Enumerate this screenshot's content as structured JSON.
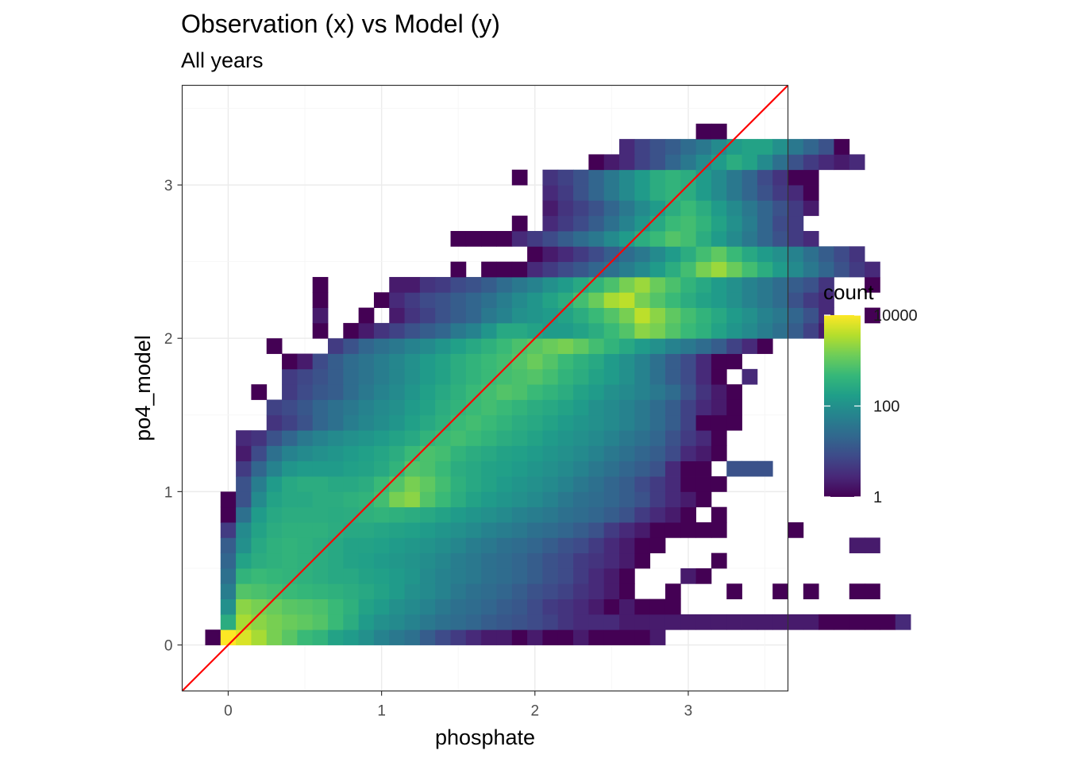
{
  "chart_data": {
    "type": "heatmap",
    "title": "Observation (x) vs Model (y)",
    "subtitle": "All years",
    "xlabel": "phosphate",
    "ylabel": "po4_model",
    "xlim": [
      -0.3,
      3.65
    ],
    "ylim": [
      -0.3,
      3.65
    ],
    "x_ticks": [
      0,
      1,
      2,
      3
    ],
    "y_ticks": [
      0,
      1,
      2,
      3
    ],
    "bin_width": 0.1,
    "y_origin": 0.0,
    "fill_scale": "log10",
    "legend": {
      "title": "count",
      "position": "right",
      "breaks": [
        1,
        100,
        10000
      ],
      "labels": [
        "1",
        "100",
        "10000"
      ],
      "range": [
        1,
        10000
      ]
    },
    "colors": {
      "viridis": [
        "#440154",
        "#482878",
        "#3E4A89",
        "#31688E",
        "#26828E",
        "#1F9E89",
        "#35B779",
        "#6DCD59",
        "#B4DE2C",
        "#FDE725"
      ],
      "identity_line": "#FF0000",
      "grid_major": "#EBEBEB",
      "grid_minor": "#F5F5F5",
      "panel_border": "#333333"
    },
    "identity_line": {
      "slope": 1,
      "intercept": 0
    },
    "rows": [
      {
        "y": 0.0,
        "x0": -0.15,
        "counts": [
          1,
          10000,
          6000,
          3000,
          1500,
          900,
          500,
          400,
          200,
          150,
          100,
          60,
          40,
          30,
          15,
          8,
          5,
          3,
          2,
          2,
          1,
          2,
          1,
          1,
          2,
          1,
          1,
          1,
          1,
          2
        ]
      },
      {
        "y": 0.1,
        "x0": -0.05,
        "counts": [
          300,
          3000,
          2000,
          1500,
          1200,
          1000,
          800,
          500,
          300,
          150,
          100,
          80,
          60,
          40,
          30,
          25,
          20,
          15,
          12,
          10,
          8,
          6,
          4,
          3,
          3,
          3,
          2,
          2,
          2,
          2,
          2,
          2,
          2,
          2,
          2,
          2,
          2,
          2,
          2,
          1,
          1,
          1,
          1,
          1,
          3
        ]
      },
      {
        "y": 0.2,
        "x0": -0.05,
        "counts": [
          100,
          2000,
          1500,
          1200,
          900,
          800,
          700,
          500,
          350,
          200,
          150,
          100,
          80,
          60,
          40,
          30,
          25,
          20,
          15,
          12,
          8,
          5,
          4,
          3,
          2,
          1,
          2,
          1,
          1,
          1
        ]
      },
      {
        "y": 0.3,
        "x0": -0.05,
        "counts": [
          50,
          800,
          700,
          600,
          500,
          450,
          400,
          350,
          300,
          250,
          200,
          150,
          100,
          80,
          60,
          40,
          30,
          25,
          20,
          15,
          10,
          8,
          6,
          4,
          3,
          2,
          1,
          0,
          0,
          1,
          0,
          0,
          0,
          1,
          0,
          0,
          1,
          0,
          1,
          0,
          0,
          1,
          1
        ]
      },
      {
        "y": 0.4,
        "x0": -0.05,
        "counts": [
          30,
          400,
          500,
          450,
          400,
          350,
          300,
          250,
          250,
          200,
          180,
          150,
          120,
          80,
          60,
          50,
          40,
          30,
          25,
          20,
          15,
          10,
          8,
          5,
          3,
          2,
          1,
          0,
          0,
          0,
          2,
          1
        ]
      },
      {
        "y": 0.5,
        "x0": -0.05,
        "counts": [
          20,
          200,
          300,
          350,
          400,
          350,
          300,
          250,
          200,
          180,
          150,
          130,
          110,
          90,
          70,
          50,
          40,
          30,
          25,
          20,
          15,
          10,
          8,
          5,
          4,
          3,
          2,
          1,
          0,
          0,
          0,
          0,
          1
        ]
      },
      {
        "y": 0.6,
        "x0": -0.05,
        "counts": [
          15,
          100,
          250,
          350,
          400,
          350,
          300,
          250,
          200,
          200,
          180,
          150,
          130,
          110,
          90,
          70,
          50,
          40,
          30,
          25,
          20,
          15,
          10,
          8,
          5,
          3,
          2,
          1,
          1,
          0,
          0,
          0,
          0,
          0,
          0,
          0,
          0,
          0,
          0,
          0,
          0,
          2,
          2
        ]
      },
      {
        "y": 0.7,
        "x0": -0.05,
        "counts": [
          5,
          80,
          200,
          300,
          350,
          350,
          350,
          300,
          250,
          250,
          220,
          200,
          180,
          150,
          120,
          100,
          80,
          60,
          50,
          40,
          30,
          25,
          20,
          15,
          10,
          5,
          3,
          2,
          1,
          1,
          1,
          1,
          1,
          0,
          0,
          0,
          0,
          1
        ]
      },
      {
        "y": 0.8,
        "x0": -0.05,
        "counts": [
          1,
          30,
          150,
          250,
          300,
          300,
          300,
          280,
          300,
          350,
          400,
          350,
          300,
          250,
          200,
          150,
          120,
          100,
          80,
          60,
          50,
          40,
          30,
          25,
          20,
          15,
          10,
          5,
          3,
          2,
          1,
          0,
          1
        ]
      },
      {
        "y": 0.9,
        "x0": -0.05,
        "counts": [
          1,
          10,
          80,
          200,
          250,
          250,
          300,
          300,
          350,
          400,
          600,
          1500,
          2000,
          800,
          500,
          300,
          200,
          150,
          120,
          100,
          80,
          60,
          40,
          30,
          25,
          20,
          15,
          10,
          5,
          3,
          2,
          1
        ]
      },
      {
        "y": 1.0,
        "x0": 0.05,
        "counts": [
          10,
          50,
          150,
          250,
          300,
          300,
          250,
          250,
          300,
          500,
          800,
          1500,
          1000,
          600,
          350,
          250,
          200,
          150,
          120,
          100,
          80,
          60,
          40,
          30,
          20,
          15,
          8,
          5,
          3,
          1,
          1,
          1
        ]
      },
      {
        "y": 1.1,
        "x0": 0.05,
        "counts": [
          5,
          20,
          60,
          120,
          150,
          150,
          150,
          180,
          200,
          250,
          400,
          800,
          700,
          500,
          300,
          250,
          200,
          180,
          150,
          120,
          100,
          80,
          60,
          40,
          30,
          20,
          15,
          10,
          3,
          1,
          1,
          0,
          10,
          10,
          10
        ]
      },
      {
        "y": 1.2,
        "x0": 0.05,
        "counts": [
          2,
          8,
          30,
          60,
          80,
          100,
          120,
          150,
          180,
          220,
          300,
          500,
          700,
          600,
          400,
          300,
          250,
          200,
          180,
          150,
          120,
          100,
          80,
          60,
          40,
          30,
          20,
          15,
          8,
          3,
          2,
          1
        ]
      },
      {
        "y": 1.3,
        "x0": 0.05,
        "counts": [
          3,
          4,
          10,
          20,
          40,
          60,
          80,
          100,
          120,
          150,
          200,
          250,
          400,
          500,
          600,
          500,
          400,
          300,
          250,
          200,
          150,
          120,
          100,
          80,
          60,
          40,
          30,
          20,
          10,
          5,
          3,
          1
        ]
      },
      {
        "y": 1.4,
        "x0": 0.25,
        "counts": [
          4,
          6,
          10,
          20,
          30,
          50,
          70,
          90,
          120,
          180,
          250,
          350,
          500,
          600,
          500,
          400,
          300,
          250,
          200,
          150,
          120,
          100,
          80,
          60,
          40,
          25,
          15,
          6,
          1,
          1,
          1
        ]
      },
      {
        "y": 1.5,
        "x0": 0.25,
        "counts": [
          6,
          8,
          12,
          20,
          30,
          40,
          60,
          80,
          100,
          150,
          200,
          300,
          400,
          500,
          600,
          500,
          400,
          300,
          250,
          200,
          150,
          100,
          80,
          60,
          40,
          25,
          15,
          6,
          3,
          2,
          1
        ]
      },
      {
        "y": 1.6,
        "x0": 0.15,
        "counts": [
          1,
          0,
          5,
          8,
          12,
          15,
          25,
          40,
          60,
          80,
          120,
          180,
          250,
          350,
          500,
          600,
          800,
          700,
          500,
          400,
          300,
          200,
          150,
          100,
          80,
          60,
          40,
          25,
          10,
          4,
          2,
          1
        ]
      },
      {
        "y": 1.7,
        "x0": 0.35,
        "counts": [
          5,
          7,
          10,
          15,
          25,
          35,
          50,
          70,
          100,
          150,
          200,
          300,
          400,
          500,
          600,
          700,
          800,
          600,
          400,
          300,
          200,
          150,
          100,
          60,
          30,
          15,
          8,
          3,
          1,
          0,
          3
        ]
      },
      {
        "y": 1.8,
        "x0": 0.35,
        "counts": [
          1,
          2,
          8,
          15,
          25,
          35,
          50,
          70,
          100,
          150,
          200,
          300,
          400,
          500,
          600,
          800,
          1200,
          800,
          500,
          350,
          250,
          150,
          100,
          60,
          30,
          15,
          8,
          3,
          1,
          1
        ]
      },
      {
        "y": 1.9,
        "x0": 0.25,
        "counts": [
          1,
          0,
          0,
          0,
          5,
          10,
          20,
          30,
          40,
          60,
          80,
          120,
          180,
          250,
          350,
          500,
          700,
          900,
          1200,
          1500,
          1000,
          600,
          400,
          250,
          150,
          100,
          60,
          40,
          25,
          15,
          6,
          3,
          1
        ]
      },
      {
        "y": 2.0,
        "x0": 0.55,
        "counts": [
          1,
          0,
          1,
          2,
          4,
          6,
          10,
          15,
          20,
          40,
          60,
          120,
          250,
          250,
          200,
          150,
          150,
          200,
          300,
          500,
          800,
          2000,
          1500,
          800,
          500,
          350,
          200,
          120,
          80,
          50,
          30,
          15,
          6,
          2
        ]
      },
      {
        "y": 2.1,
        "x0": 0.55,
        "counts": [
          2,
          0,
          0,
          1,
          0,
          2,
          4,
          6,
          10,
          15,
          20,
          40,
          60,
          100,
          120,
          150,
          200,
          300,
          500,
          800,
          1500,
          4000,
          2000,
          1000,
          600,
          400,
          250,
          150,
          100,
          60,
          40,
          20,
          10,
          3,
          0,
          0,
          1
        ]
      },
      {
        "y": 2.2,
        "x0": 0.55,
        "counts": [
          1,
          0,
          0,
          0,
          1,
          3,
          5,
          8,
          10,
          15,
          20,
          30,
          50,
          80,
          120,
          200,
          300,
          600,
          1200,
          3000,
          4000,
          1500,
          800,
          500,
          300,
          200,
          150,
          100,
          60,
          40,
          25,
          10,
          5,
          3
        ]
      },
      {
        "y": 2.3,
        "x0": 0.55,
        "counts": [
          1,
          0,
          0,
          0,
          0,
          2,
          2,
          4,
          5,
          8,
          10,
          15,
          25,
          40,
          60,
          100,
          150,
          250,
          400,
          700,
          1500,
          2500,
          1200,
          700,
          400,
          250,
          150,
          100,
          60,
          40,
          25,
          15,
          10,
          4,
          0,
          0,
          1
        ]
      },
      {
        "y": 2.4,
        "x0": 0.55,
        "counts": [
          0,
          0,
          0,
          0,
          0,
          0,
          0,
          0,
          0,
          1,
          0,
          1,
          1,
          1,
          3,
          5,
          8,
          12,
          20,
          30,
          50,
          80,
          150,
          300,
          600,
          1500,
          2500,
          1200,
          600,
          300,
          150,
          80,
          40,
          20,
          10,
          5,
          3
        ]
      },
      {
        "y": 2.5,
        "x0": 0.55,
        "counts": [
          0,
          0,
          0,
          0,
          0,
          0,
          0,
          0,
          0,
          0,
          0,
          0,
          0,
          0,
          1,
          2,
          3,
          5,
          8,
          15,
          25,
          40,
          80,
          150,
          300,
          600,
          1000,
          500,
          250,
          150,
          100,
          60,
          30,
          15,
          8,
          4
        ]
      },
      {
        "y": 2.6,
        "x0": 1.45,
        "counts": [
          1,
          1,
          1,
          1,
          3,
          5,
          8,
          15,
          25,
          40,
          80,
          150,
          300,
          500,
          800,
          600,
          300,
          150,
          80,
          40,
          20,
          10,
          5,
          3
        ]
      },
      {
        "y": 2.7,
        "x0": 1.85,
        "counts": [
          1,
          0,
          3,
          5,
          8,
          15,
          30,
          60,
          120,
          250,
          500,
          600,
          400,
          200,
          100,
          50,
          20,
          8,
          5
        ]
      },
      {
        "y": 2.8,
        "x0": 2.05,
        "counts": [
          2,
          4,
          6,
          10,
          20,
          40,
          80,
          150,
          300,
          500,
          300,
          150,
          80,
          40,
          20,
          10,
          5,
          2
        ]
      },
      {
        "y": 2.9,
        "x0": 2.05,
        "counts": [
          3,
          5,
          10,
          20,
          40,
          80,
          150,
          300,
          400,
          300,
          150,
          80,
          40,
          20,
          10,
          5,
          3,
          1
        ]
      },
      {
        "y": 3.0,
        "x0": 1.85,
        "counts": [
          1,
          0,
          4,
          6,
          10,
          20,
          40,
          80,
          150,
          300,
          400,
          300,
          150,
          80,
          40,
          20,
          8,
          4,
          1,
          1
        ]
      },
      {
        "y": 3.1,
        "x0": 2.35,
        "counts": [
          1,
          2,
          3,
          6,
          10,
          20,
          40,
          80,
          150,
          300,
          200,
          80,
          30,
          10,
          5,
          3,
          2,
          3
        ]
      },
      {
        "y": 3.2,
        "x0": 2.55,
        "counts": [
          3,
          6,
          10,
          15,
          25,
          40,
          80,
          150,
          200,
          200,
          100,
          40,
          20,
          10,
          1
        ]
      },
      {
        "y": 3.3,
        "x0": 3.05,
        "counts": [
          1,
          1
        ]
      }
    ]
  }
}
